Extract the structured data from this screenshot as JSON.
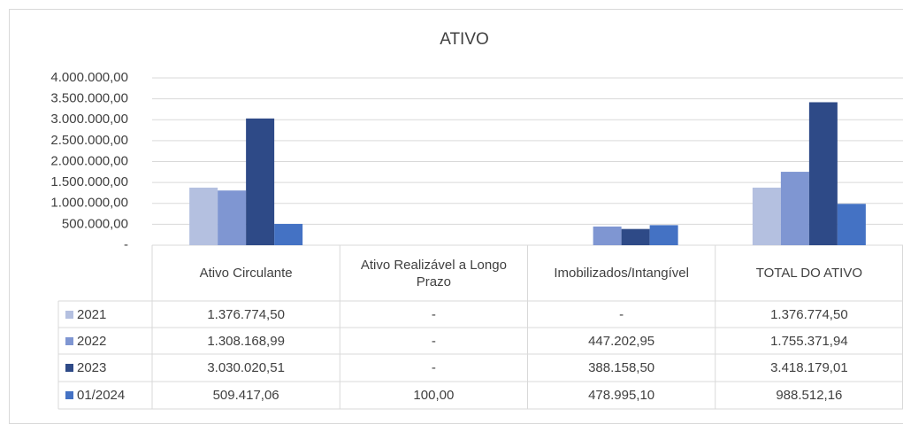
{
  "chart_data": {
    "type": "bar",
    "title": "ATIVO",
    "categories": [
      "Ativo Circulante",
      "Ativo Realizável a Longo Prazo",
      "Imobilizados/Intangível",
      "TOTAL DO ATIVO"
    ],
    "series": [
      {
        "name": "2021",
        "color": "#b4c0e0",
        "values": [
          1376774.5,
          0,
          0,
          1376774.5
        ],
        "value_labels": [
          "1.376.774,50",
          "-",
          "-",
          "1.376.774,50"
        ]
      },
      {
        "name": "2022",
        "color": "#7f96d2",
        "values": [
          1308168.99,
          0,
          447202.95,
          1755371.94
        ],
        "value_labels": [
          "1.308.168,99",
          "-",
          "447.202,95",
          "1.755.371,94"
        ]
      },
      {
        "name": "2023",
        "color": "#2e4a87",
        "values": [
          3030020.51,
          0,
          388158.5,
          3418179.01
        ],
        "value_labels": [
          "3.030.020,51",
          "-",
          "388.158,50",
          "3.418.179,01"
        ]
      },
      {
        "name": "01/2024",
        "color": "#4472c4",
        "values": [
          509417.06,
          100.0,
          478995.1,
          988512.16
        ],
        "value_labels": [
          "509.417,06",
          "100,00",
          "478.995,10",
          "988.512,16"
        ]
      }
    ],
    "ylim": [
      0,
      4000000
    ],
    "yticks": [
      {
        "value": 0,
        "label": "-"
      },
      {
        "value": 500000,
        "label": "500.000,00"
      },
      {
        "value": 1000000,
        "label": "1.000.000,00"
      },
      {
        "value": 1500000,
        "label": "1.500.000,00"
      },
      {
        "value": 2000000,
        "label": "2.000.000,00"
      },
      {
        "value": 2500000,
        "label": "2.500.000,00"
      },
      {
        "value": 3000000,
        "label": "3.000.000,00"
      },
      {
        "value": 3500000,
        "label": "3.500.000,00"
      },
      {
        "value": 4000000,
        "label": "4.000.000,00"
      }
    ],
    "grid": true
  }
}
